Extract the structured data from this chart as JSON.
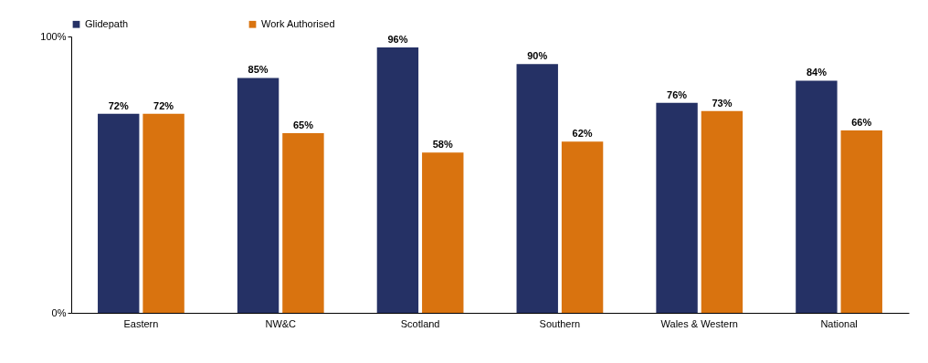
{
  "chart_data": {
    "type": "bar",
    "categories": [
      "Eastern",
      "NW&C",
      "Scotland",
      "Southern",
      "Wales & Western",
      "National"
    ],
    "series": [
      {
        "name": "Glidepath",
        "color": "#253165",
        "values": [
          72,
          85,
          96,
          90,
          76,
          84
        ],
        "value_labels": [
          "72%",
          "85%",
          "96%",
          "90%",
          "76%",
          "84%"
        ]
      },
      {
        "name": "Work Authorised",
        "color": "#d9730f",
        "values": [
          72,
          65,
          58,
          62,
          73,
          66
        ],
        "value_labels": [
          "72%",
          "65%",
          "58%",
          "62%",
          "73%",
          "66%"
        ]
      }
    ],
    "ylim": [
      0,
      100
    ],
    "yticks": [
      {
        "value": 0,
        "label": "0%"
      },
      {
        "value": 100,
        "label": "100%"
      }
    ],
    "grid": false,
    "legend": "top"
  }
}
